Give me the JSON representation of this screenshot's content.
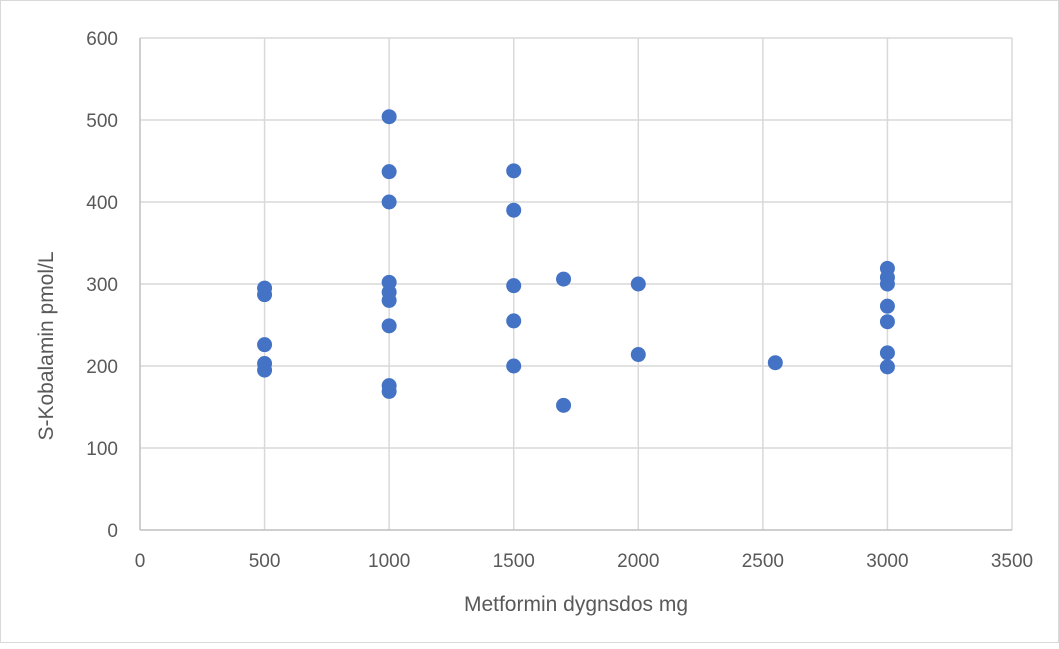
{
  "chart_data": {
    "type": "scatter",
    "title": "",
    "xlabel": "Metformin dygnsdos mg",
    "ylabel": "S-Kobalamin pmol/L",
    "xlim": [
      0,
      3500
    ],
    "ylim": [
      0,
      600
    ],
    "x_ticks": [
      0,
      500,
      1000,
      1500,
      2000,
      2500,
      3000,
      3500
    ],
    "y_ticks": [
      0,
      100,
      200,
      300,
      400,
      500,
      600
    ],
    "grid": true,
    "legend": "none",
    "marker_color": "#4472c4",
    "grid_color": "#d9d9d9",
    "series": [
      {
        "points": [
          [
            500,
            295
          ],
          [
            500,
            287
          ],
          [
            500,
            226
          ],
          [
            500,
            203
          ],
          [
            500,
            195
          ],
          [
            1000,
            504
          ],
          [
            1000,
            437
          ],
          [
            1000,
            400
          ],
          [
            1000,
            302
          ],
          [
            1000,
            290
          ],
          [
            1000,
            280
          ],
          [
            1000,
            249
          ],
          [
            1000,
            176
          ],
          [
            1000,
            169
          ],
          [
            1500,
            438
          ],
          [
            1500,
            390
          ],
          [
            1500,
            298
          ],
          [
            1500,
            255
          ],
          [
            1500,
            200
          ],
          [
            1700,
            306
          ],
          [
            1700,
            152
          ],
          [
            2000,
            300
          ],
          [
            2000,
            214
          ],
          [
            2550,
            204
          ],
          [
            3000,
            319
          ],
          [
            3000,
            308
          ],
          [
            3000,
            300
          ],
          [
            3000,
            273
          ],
          [
            3000,
            254
          ],
          [
            3000,
            216
          ],
          [
            3000,
            199
          ]
        ]
      }
    ]
  }
}
